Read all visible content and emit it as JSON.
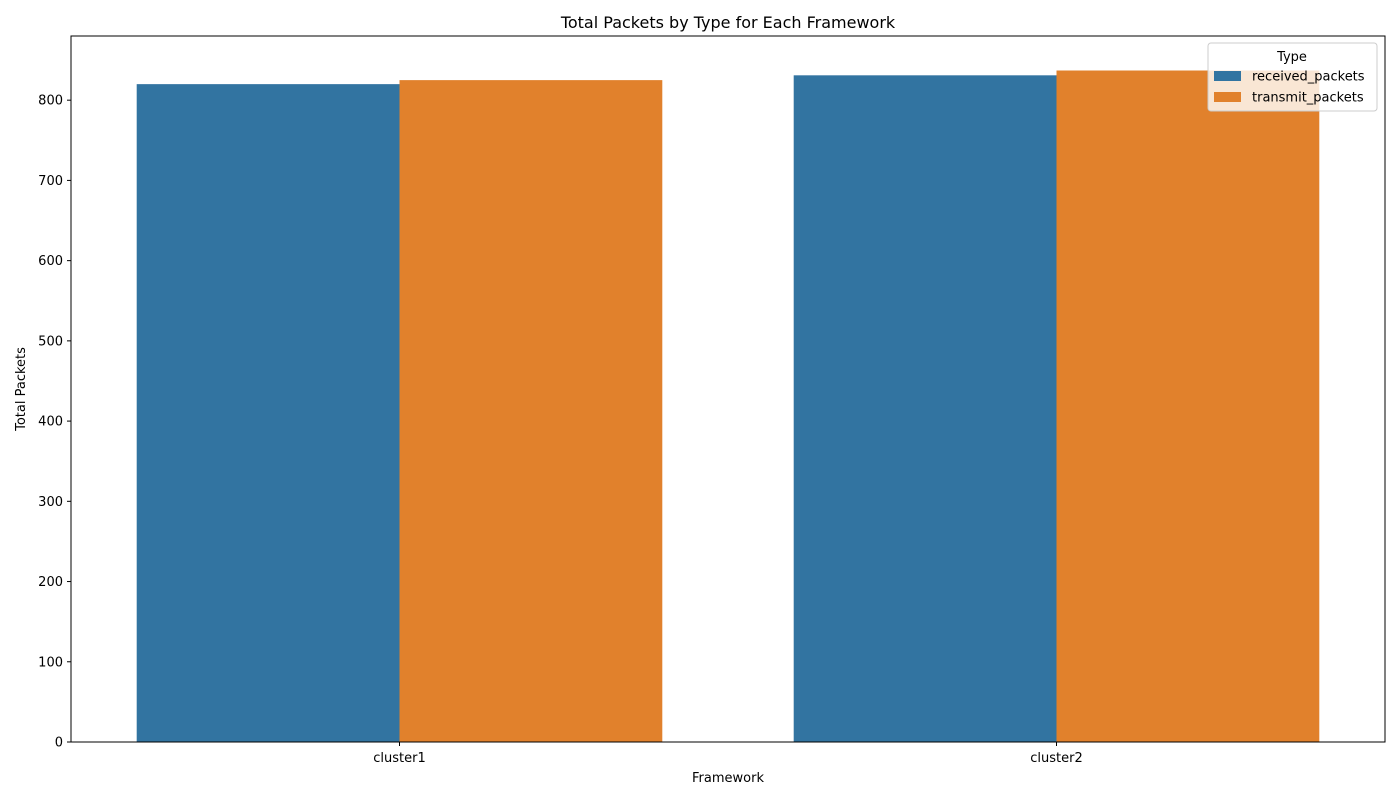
{
  "chart_data": {
    "type": "bar",
    "title": "Total Packets by Type for Each Framework",
    "xlabel": "Framework",
    "ylabel": "Total Packets",
    "categories": [
      "cluster1",
      "cluster2"
    ],
    "series": [
      {
        "name": "received_packets",
        "values": [
          820,
          831
        ],
        "color": "#3274a1"
      },
      {
        "name": "transmit_packets",
        "values": [
          825,
          837
        ],
        "color": "#e1812c"
      }
    ],
    "ylim": [
      0,
      880
    ],
    "yticks": [
      0,
      100,
      200,
      300,
      400,
      500,
      600,
      700,
      800
    ],
    "grid": false,
    "legend": {
      "title": "Type",
      "placement": "top-right"
    }
  }
}
